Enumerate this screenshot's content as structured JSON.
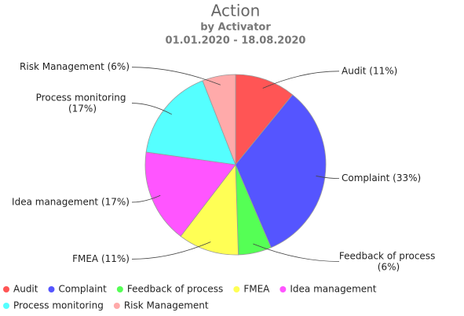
{
  "chart_data": {
    "type": "pie",
    "title": "Action",
    "subtitle": "by Activator",
    "date_range": "01.01.2020 - 18.08.2020",
    "categories": [
      "Audit",
      "Complaint",
      "Feedback of process",
      "FMEA",
      "Idea management",
      "Process monitoring",
      "Risk Management"
    ],
    "values": [
      11,
      33,
      6,
      11,
      17,
      17,
      6
    ],
    "value_labels": [
      "Audit (11%)",
      "Complaint (33%)",
      "Feedback of process (6%)",
      "FMEA (11%)",
      "Idea management (17%)",
      "Process monitoring (17%)",
      "Risk Management (6%)"
    ],
    "colors": [
      "#ff5555",
      "#5555ff",
      "#55ff55",
      "#ffff55",
      "#ff55ff",
      "#55ffff",
      "#ffaaaa"
    ],
    "legend": "bottom"
  }
}
